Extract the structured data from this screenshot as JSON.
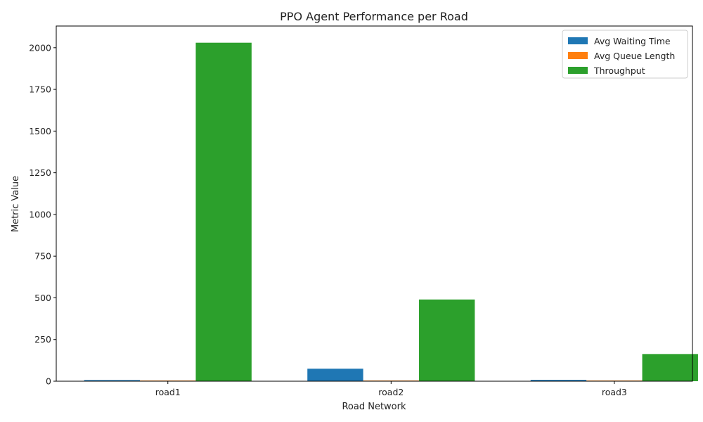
{
  "chart_data": {
    "type": "bar",
    "title": "PPO Agent Performance per Road",
    "xlabel": "Road Network",
    "ylabel": "Metric Value",
    "categories": [
      "road1",
      "road2",
      "road3"
    ],
    "series": [
      {
        "name": "Avg Waiting Time",
        "values": [
          7,
          75,
          8
        ],
        "color": "#1f77b4"
      },
      {
        "name": "Avg Queue Length",
        "values": [
          1,
          1,
          1
        ],
        "color": "#ff7f0e"
      },
      {
        "name": "Throughput",
        "values": [
          2030,
          490,
          163
        ],
        "color": "#2ca02c"
      }
    ],
    "ylim": [
      0,
      2130
    ],
    "yticks": [
      "0",
      "250",
      "500",
      "750",
      "1000",
      "1250",
      "1500",
      "1750",
      "2000"
    ],
    "legend": "top-right",
    "grid": false
  }
}
